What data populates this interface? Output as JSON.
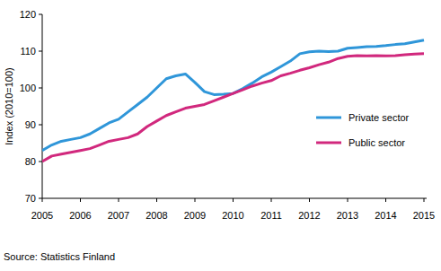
{
  "chart_data": {
    "type": "line",
    "y_label": "Index (2010=100)",
    "source": "Source: Statistics Finland",
    "categories": [
      "2005",
      null,
      null,
      null,
      "2006",
      null,
      null,
      null,
      "2007",
      null,
      null,
      null,
      "2008",
      null,
      null,
      null,
      "2009",
      null,
      null,
      null,
      "2010",
      null,
      null,
      null,
      "2011",
      null,
      null,
      null,
      "2012",
      null,
      null,
      null,
      "2013",
      null,
      null,
      null,
      "2014",
      null,
      null,
      null,
      "2015"
    ],
    "series": [
      {
        "name": "Private sector",
        "color": "#2f96d9",
        "values": [
          83,
          84.5,
          85.5,
          86,
          86.5,
          87.5,
          89,
          90.5,
          91.5,
          93.5,
          95.5,
          97.5,
          100,
          102.5,
          103.3,
          103.8,
          101.5,
          99,
          98.2,
          98.3,
          98.5,
          99.8,
          101.3,
          103,
          104.3,
          105.8,
          107.3,
          109.3,
          109.8,
          110,
          109.9,
          110,
          110.8,
          111,
          111.2,
          111.3,
          111.5,
          111.8,
          112,
          112.5,
          113
        ]
      },
      {
        "name": "Public sector",
        "color": "#d1287d",
        "values": [
          80,
          81.5,
          82,
          82.5,
          83,
          83.5,
          84.5,
          85.5,
          86,
          86.5,
          87.5,
          89.5,
          91,
          92.5,
          93.5,
          94.5,
          95,
          95.5,
          96.5,
          97.5,
          98.5,
          99.5,
          100.5,
          101.3,
          102,
          103.3,
          104,
          104.8,
          105.5,
          106.3,
          107,
          108,
          108.6,
          108.8,
          108.7,
          108.8,
          108.7,
          108.8,
          109,
          109.2,
          109.3
        ]
      }
    ],
    "ylim": [
      70,
      120
    ],
    "yticks": [
      70,
      80,
      90,
      100,
      110,
      120
    ],
    "grid": false,
    "legend": "right"
  }
}
